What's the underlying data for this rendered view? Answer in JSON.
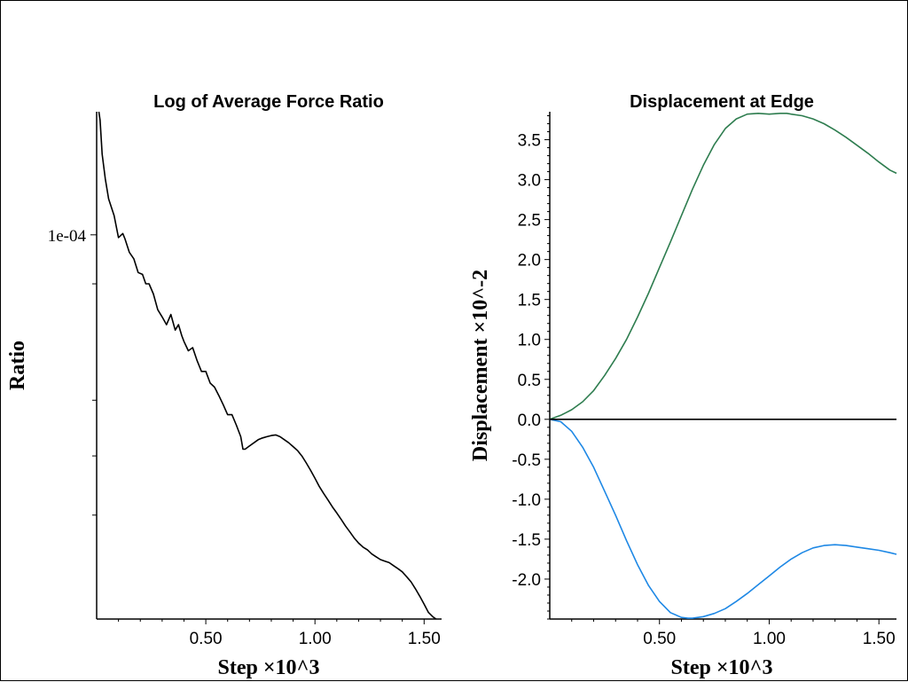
{
  "chart_data": [
    {
      "type": "line",
      "title": "Log of Average Force Ratio",
      "xlabel": "Step ×10^3",
      "ylabel": "Ratio",
      "xlim": [
        0.0,
        1.58
      ],
      "ylog": true,
      "ylim": [
        6.1e-06,
        0.000245
      ],
      "x_ticks": [
        0.5,
        1.0,
        1.5
      ],
      "x_tick_labels": [
        "0.50",
        "1.00",
        "1.50"
      ],
      "y_major_ticks": [
        0.0001
      ],
      "y_major_tick_labels": [
        "1e-04"
      ],
      "y_minor_ticks": [
        7e-05,
        3e-05,
        2e-05,
        1.3e-05
      ],
      "series": [
        {
          "color": "#000000",
          "x": [
            0.01,
            0.016,
            0.025,
            0.04,
            0.055,
            0.08,
            0.1,
            0.12,
            0.13,
            0.15,
            0.17,
            0.19,
            0.21,
            0.225,
            0.24,
            0.26,
            0.28,
            0.3,
            0.32,
            0.34,
            0.36,
            0.375,
            0.39,
            0.4,
            0.42,
            0.44,
            0.46,
            0.48,
            0.5,
            0.52,
            0.54,
            0.56,
            0.58,
            0.6,
            0.62,
            0.64,
            0.66,
            0.67,
            0.68,
            0.7,
            0.72,
            0.74,
            0.76,
            0.78,
            0.8,
            0.82,
            0.84,
            0.86,
            0.88,
            0.9,
            0.92,
            0.94,
            0.96,
            0.98,
            1.0,
            1.02,
            1.04,
            1.06,
            1.08,
            1.1,
            1.12,
            1.14,
            1.16,
            1.18,
            1.2,
            1.22,
            1.24,
            1.26,
            1.28,
            1.3,
            1.32,
            1.34,
            1.36,
            1.38,
            1.4,
            1.42,
            1.44,
            1.46,
            1.48,
            1.5,
            1.52,
            1.54,
            1.555
          ],
          "y": [
            0.000245,
            0.00023,
            0.00018,
            0.00015,
            0.00013,
            0.000115,
            9.8e-05,
            0.000101,
            9.7e-05,
            8.8e-05,
            8.4e-05,
            7.6e-05,
            7.5e-05,
            7e-05,
            7e-05,
            6.5e-05,
            5.8e-05,
            5.5e-05,
            5.2e-05,
            5.6e-05,
            5e-05,
            5.2e-05,
            4.8e-05,
            4.6e-05,
            4.3e-05,
            4.4e-05,
            4e-05,
            3.7e-05,
            3.7e-05,
            3.4e-05,
            3.3e-05,
            3.1e-05,
            2.9e-05,
            2.7e-05,
            2.7e-05,
            2.5e-05,
            2.3e-05,
            2.1e-05,
            2.1e-05,
            2.15e-05,
            2.2e-05,
            2.25e-05,
            2.28e-05,
            2.3e-05,
            2.32e-05,
            2.33e-05,
            2.3e-05,
            2.25e-05,
            2.2e-05,
            2.14e-05,
            2.08e-05,
            2e-05,
            1.9e-05,
            1.8e-05,
            1.7e-05,
            1.6e-05,
            1.52e-05,
            1.45e-05,
            1.38e-05,
            1.32e-05,
            1.26e-05,
            1.2e-05,
            1.15e-05,
            1.1e-05,
            1.06e-05,
            1.03e-05,
            1.01e-05,
            9.8e-06,
            9.6e-06,
            9.4e-06,
            9.3e-06,
            9.2e-06,
            9e-06,
            8.8e-06,
            8.6e-06,
            8.3e-06,
            8e-06,
            7.6e-06,
            7.2e-06,
            6.8e-06,
            6.4e-06,
            6.2e-06,
            6.1e-06
          ]
        }
      ]
    },
    {
      "type": "line",
      "title": "Displacement at Edge",
      "xlabel": "Step ×10^3",
      "ylabel": "Displacement ×10^-2",
      "xlim": [
        0.0,
        1.58
      ],
      "ylim": [
        -2.5,
        3.85
      ],
      "x_ticks": [
        0.5,
        1.0,
        1.5
      ],
      "x_tick_labels": [
        "0.50",
        "1.00",
        "1.50"
      ],
      "y_ticks": [
        -2.0,
        -1.5,
        -1.0,
        -0.5,
        0.0,
        0.5,
        1.0,
        1.5,
        2.0,
        2.5,
        3.0,
        3.5
      ],
      "y_tick_labels": [
        "-2.0",
        "-1.5",
        "-1.0",
        "-0.5",
        "0.0",
        "0.5",
        "1.0",
        "1.5",
        "2.0",
        "2.5",
        "3.0",
        "3.5"
      ],
      "series": [
        {
          "color": "#2e7d4f",
          "x": [
            0.0,
            0.05,
            0.1,
            0.15,
            0.2,
            0.25,
            0.3,
            0.35,
            0.4,
            0.45,
            0.5,
            0.55,
            0.6,
            0.65,
            0.7,
            0.75,
            0.8,
            0.85,
            0.9,
            0.95,
            1.0,
            1.05,
            1.08,
            1.1,
            1.15,
            1.2,
            1.25,
            1.3,
            1.35,
            1.4,
            1.45,
            1.5,
            1.55,
            1.58
          ],
          "y": [
            0.0,
            0.05,
            0.12,
            0.22,
            0.36,
            0.55,
            0.76,
            1.0,
            1.28,
            1.58,
            1.9,
            2.22,
            2.55,
            2.88,
            3.18,
            3.44,
            3.64,
            3.76,
            3.82,
            3.83,
            3.82,
            3.83,
            3.83,
            3.82,
            3.8,
            3.76,
            3.7,
            3.62,
            3.53,
            3.43,
            3.33,
            3.22,
            3.12,
            3.08
          ]
        },
        {
          "color": "#1e88e5",
          "x": [
            0.0,
            0.05,
            0.1,
            0.15,
            0.2,
            0.25,
            0.3,
            0.35,
            0.4,
            0.45,
            0.5,
            0.55,
            0.6,
            0.63,
            0.65,
            0.7,
            0.75,
            0.8,
            0.85,
            0.9,
            0.95,
            1.0,
            1.05,
            1.1,
            1.15,
            1.2,
            1.25,
            1.3,
            1.35,
            1.4,
            1.45,
            1.5,
            1.55,
            1.58
          ],
          "y": [
            0.0,
            -0.03,
            -0.15,
            -0.35,
            -0.6,
            -0.9,
            -1.2,
            -1.52,
            -1.82,
            -2.08,
            -2.28,
            -2.42,
            -2.48,
            -2.49,
            -2.49,
            -2.47,
            -2.43,
            -2.37,
            -2.28,
            -2.18,
            -2.07,
            -1.96,
            -1.85,
            -1.75,
            -1.67,
            -1.61,
            -1.58,
            -1.57,
            -1.58,
            -1.6,
            -1.62,
            -1.64,
            -1.67,
            -1.69
          ]
        },
        {
          "color": "#000000",
          "x": [
            0.0,
            1.58
          ],
          "y": [
            0.0,
            0.0
          ]
        }
      ]
    }
  ]
}
